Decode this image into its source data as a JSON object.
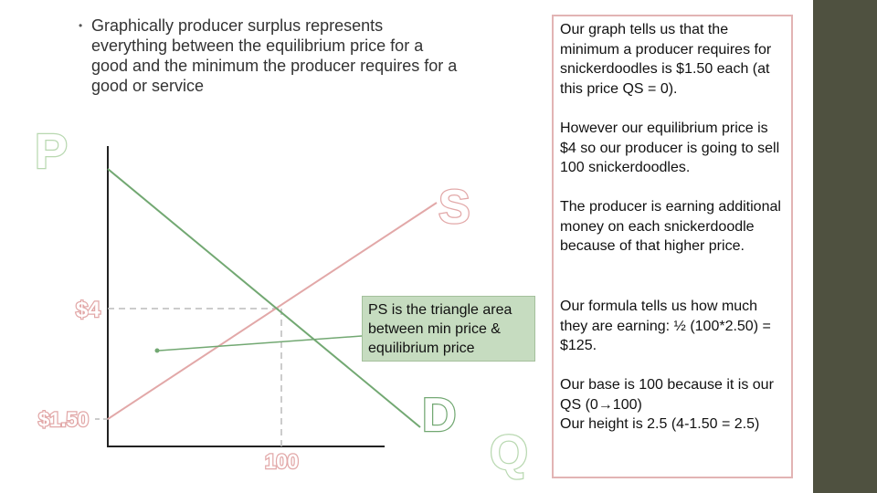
{
  "bullet": {
    "symbol": "•",
    "text": "Graphically producer surplus represents everything between the equilibrium price for a good and the minimum the producer requires for a good or service"
  },
  "panel": {
    "paragraphs": [
      "Our graph tells us that the minimum a producer requires for snickerdoodles is $1.50 each (at this price QS = 0).",
      "However our equilibrium price is $4 so our producer is going to sell 100 snickerdoodles.",
      "The producer is earning additional money on each snickerdoodle because of that higher price.",
      "Our formula tells us how much they are earning: ½ (100*2.50) = $125.",
      "Our base is 100  because it is our QS (0→100)",
      "Our height is 2.5 (4-1.50 = 2.5)"
    ]
  },
  "graph": {
    "y_axis_label": "P",
    "x_axis_label": "Q",
    "supply_label": "S",
    "demand_label": "D",
    "equilibrium_price_label": "$4",
    "min_price_label": "$1.50",
    "quantity_label": "100",
    "callout_text": "PS is the triangle area between min price & equilibrium price"
  },
  "colors": {
    "supply": "#e2a8a8",
    "demand": "#72a872",
    "accent_sidebar": "#4f5140",
    "panel_border": "#e2b4b4",
    "callout_bg": "#c6dcc0"
  }
}
